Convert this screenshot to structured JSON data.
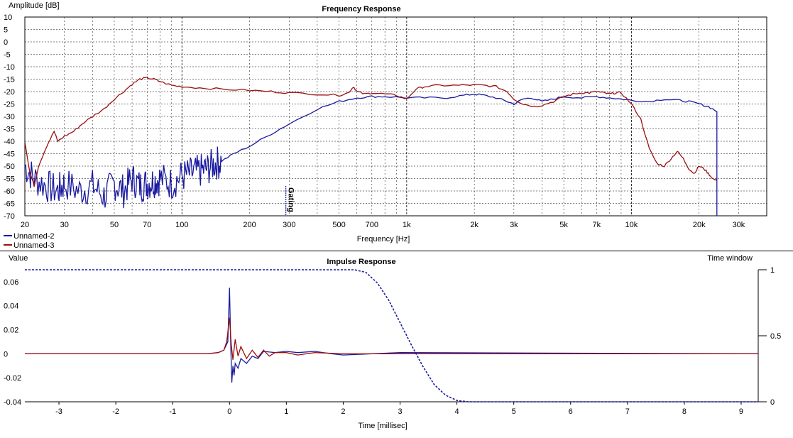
{
  "chart_data": [
    {
      "type": "line",
      "title": "Frequency Response",
      "xlabel": "Frequency [Hz]",
      "ylabel": "Amplitude [dB]",
      "x_scale": "log",
      "xlim": [
        20,
        40000
      ],
      "ylim": [
        -70,
        10
      ],
      "grid": true,
      "legend_position": "bottom-left",
      "x_ticks": [
        20,
        30,
        50,
        70,
        100,
        200,
        300,
        500,
        700,
        1000,
        2000,
        3000,
        5000,
        7000,
        10000,
        20000,
        30000
      ],
      "x_tick_labels": [
        "20",
        "30",
        "50",
        "70",
        "100",
        "200",
        "300",
        "500",
        "700",
        "1k",
        "2k",
        "3k",
        "5k",
        "7k",
        "10k",
        "20k",
        "30k"
      ],
      "y_ticks": [
        10,
        5,
        0,
        -5,
        -10,
        -15,
        -20,
        -25,
        -30,
        -35,
        -40,
        -45,
        -50,
        -55,
        -60,
        -65,
        -70
      ],
      "y_tick_labels": [
        "10",
        "5",
        "0",
        "-5",
        "-10",
        "-15",
        "-20",
        "-25",
        "-30",
        "-35",
        "-40",
        "-45",
        "-50",
        "-55",
        "-60",
        "-65",
        "-70"
      ],
      "marker": {
        "label": "Gating",
        "x": 290
      },
      "series": [
        {
          "name": "Unnamed-2",
          "color": "#1a1aa0",
          "noise_below": 150,
          "x": [
            20,
            22,
            25,
            28,
            30,
            35,
            40,
            45,
            50,
            55,
            60,
            65,
            70,
            75,
            80,
            90,
            100,
            110,
            120,
            130,
            140,
            150,
            170,
            200,
            250,
            300,
            400,
            500,
            600,
            700,
            800,
            1000,
            1200,
            1500,
            1800,
            2000,
            2200,
            2500,
            2800,
            3000,
            3300,
            3600,
            4000,
            4500,
            5000,
            6000,
            7000,
            8000,
            9000,
            10000,
            12000,
            14000,
            16000,
            18000,
            20000,
            22000,
            24000,
            24001,
            24002
          ],
          "y": [
            -50,
            -55,
            -58,
            -60,
            -57,
            -60,
            -58,
            -62,
            -57,
            -60,
            -55,
            -58,
            -57,
            -56,
            -55,
            -57,
            -54,
            -53,
            -52,
            -51,
            -49,
            -48,
            -45,
            -42,
            -37,
            -33,
            -27,
            -24,
            -22.5,
            -22,
            -22,
            -22.5,
            -22.5,
            -22.5,
            -21.5,
            -21,
            -21.5,
            -22.5,
            -24,
            -25,
            -23,
            -22.5,
            -24,
            -23,
            -22,
            -22.5,
            -22,
            -22.5,
            -23,
            -23.5,
            -24,
            -23,
            -23.5,
            -24,
            -25,
            -26,
            -28,
            -29,
            -70
          ]
        },
        {
          "name": "Unnamed-3",
          "color": "#9a1010",
          "x": [
            20,
            21,
            22,
            23,
            25,
            27,
            28,
            30,
            33,
            36,
            40,
            45,
            50,
            55,
            60,
            65,
            70,
            75,
            80,
            90,
            100,
            120,
            150,
            200,
            250,
            300,
            400,
            500,
            550,
            580,
            600,
            650,
            700,
            800,
            900,
            1000,
            1100,
            1200,
            1400,
            1700,
            2000,
            2200,
            2500,
            2800,
            3000,
            3300,
            3700,
            4000,
            4500,
            5000,
            5500,
            6000,
            6500,
            7000,
            7500,
            8000,
            8500,
            9000,
            10000,
            11000,
            12000,
            13000,
            14000,
            15000,
            16000,
            17000,
            18000,
            19000,
            20000,
            21000,
            22000,
            23000,
            24000
          ],
          "y": [
            -40,
            -52,
            -58,
            -50,
            -42,
            -36,
            -40,
            -38,
            -36,
            -33,
            -30,
            -27,
            -23,
            -20,
            -17,
            -15,
            -14.5,
            -15,
            -16,
            -17.5,
            -18,
            -18.5,
            -19,
            -19.5,
            -20,
            -20.5,
            -21,
            -21.5,
            -20.5,
            -18,
            -20,
            -21,
            -20.5,
            -21,
            -21.5,
            -23,
            -19,
            -18,
            -17.5,
            -17.5,
            -17.3,
            -17.5,
            -18,
            -20,
            -23,
            -25,
            -26,
            -25.5,
            -24,
            -22,
            -21,
            -20.5,
            -20.5,
            -20,
            -20.5,
            -21,
            -20.5,
            -20.5,
            -25,
            -31,
            -43,
            -49,
            -50,
            -47,
            -44,
            -47,
            -51,
            -53,
            -50,
            -51,
            -53,
            -55,
            -56
          ]
        }
      ]
    },
    {
      "type": "line",
      "title": "Impulse Response",
      "xlabel": "Time [millisec]",
      "ylabel": "Value",
      "y2label": "Time window",
      "xlim": [
        -3.6,
        9.3
      ],
      "ylim": [
        -0.04,
        0.07
      ],
      "y2lim": [
        0,
        1
      ],
      "grid": false,
      "x_ticks": [
        -3,
        -2,
        -1,
        0,
        1,
        2,
        3,
        4,
        5,
        6,
        7,
        8,
        9
      ],
      "x_tick_labels": [
        "-3",
        "-2",
        "-1",
        "0",
        "1",
        "2",
        "3",
        "4",
        "5",
        "6",
        "7",
        "8",
        "9"
      ],
      "y_ticks": [
        0.06,
        0.04,
        0.02,
        0,
        -0.02,
        -0.04
      ],
      "y_tick_labels": [
        "0.06",
        "0.04",
        "0.02",
        "0",
        "-0.02",
        "-0.04"
      ],
      "y2_ticks": [
        1,
        0.5,
        0
      ],
      "y2_tick_labels": [
        "1",
        "0.5",
        "0"
      ],
      "series": [
        {
          "name": "Unnamed-2",
          "color": "#1a1aa0",
          "x": [
            -3.6,
            -0.4,
            -0.2,
            -0.1,
            -0.03,
            0,
            0.02,
            0.04,
            0.06,
            0.08,
            0.1,
            0.15,
            0.2,
            0.3,
            0.4,
            0.5,
            0.6,
            0.8,
            1.0,
            1.2,
            1.5,
            1.8,
            2.0,
            2.5,
            3.0,
            9.3
          ],
          "y": [
            0,
            0,
            0.001,
            0.003,
            0.01,
            0.055,
            0.01,
            -0.024,
            -0.01,
            -0.018,
            -0.008,
            -0.012,
            -0.004,
            -0.008,
            -0.002,
            -0.004,
            0.002,
            0.001,
            0.002,
            0.001,
            0.002,
            0.0,
            -0.001,
            0,
            0.001,
            0
          ]
        },
        {
          "name": "Unnamed-3",
          "color": "#9a1010",
          "x": [
            -3.6,
            -0.4,
            -0.2,
            -0.1,
            -0.05,
            0,
            0.03,
            0.06,
            0.1,
            0.15,
            0.2,
            0.3,
            0.4,
            0.5,
            0.6,
            0.7,
            0.8,
            1.0,
            1.2,
            1.5,
            2.0,
            3.0,
            9.3
          ],
          "y": [
            0,
            0,
            0.001,
            0.003,
            0.01,
            0.03,
            0.008,
            -0.005,
            0.012,
            -0.002,
            0.006,
            -0.004,
            0.003,
            -0.003,
            0.003,
            -0.002,
            0.001,
            0.001,
            -0.001,
            0.001,
            0,
            0,
            0
          ]
        },
        {
          "name": "Time window",
          "color": "#1a1aa0",
          "dashed": true,
          "axis": "y2",
          "x": [
            -3.6,
            0,
            2.2,
            2.4,
            2.6,
            2.8,
            3.0,
            3.2,
            3.4,
            3.6,
            3.8,
            4.0,
            4.2,
            9.3
          ],
          "y": [
            1,
            1,
            1,
            0.98,
            0.9,
            0.77,
            0.6,
            0.43,
            0.27,
            0.13,
            0.05,
            0.01,
            0,
            0
          ]
        }
      ]
    }
  ]
}
